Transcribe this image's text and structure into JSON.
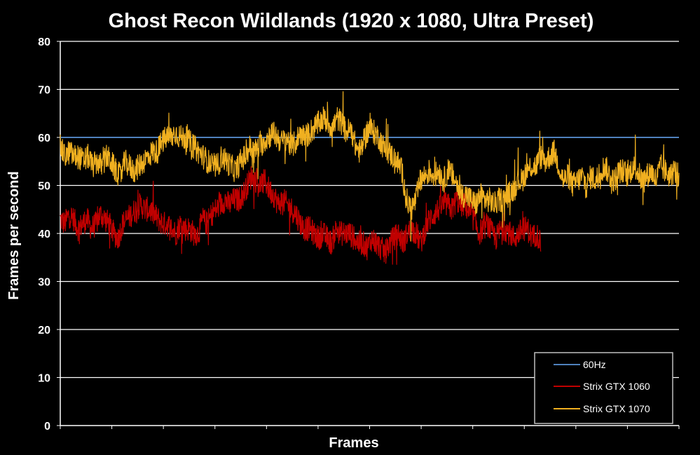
{
  "chart_data": {
    "type": "line",
    "title": "Ghost Recon Wildlands (1920 x 1080, Ultra Preset)",
    "xlabel": "Frames",
    "ylabel": "Frames per second",
    "ylim": [
      0,
      80
    ],
    "yticks": [
      0,
      10,
      20,
      30,
      40,
      50,
      60,
      70,
      80
    ],
    "grid": true,
    "legend_position": "bottom-right",
    "series": [
      {
        "name": "60Hz",
        "color": "#4f81bd",
        "values": [
          60,
          60
        ]
      },
      {
        "name": "Strix GTX 1060",
        "color": "#c00000",
        "values": [
          43,
          42,
          44,
          43,
          41,
          42,
          43,
          41,
          42,
          44,
          43,
          42,
          40,
          39,
          42,
          43,
          44,
          45,
          46,
          45,
          45,
          44,
          43,
          42,
          42,
          41,
          40,
          42,
          41,
          41,
          40,
          40,
          43,
          42,
          44,
          45,
          46,
          47,
          46,
          47,
          47,
          48,
          50,
          52,
          51,
          50,
          51,
          49,
          48,
          46,
          47,
          46,
          45,
          44,
          42,
          41,
          41,
          40,
          39,
          40,
          39,
          38,
          41,
          40,
          40,
          40,
          39,
          38,
          38,
          37,
          39,
          38,
          37,
          36,
          38,
          39,
          40,
          38,
          40,
          41,
          40,
          38,
          41,
          43,
          44,
          45,
          46,
          46,
          45,
          47,
          46,
          46,
          44,
          43,
          40,
          41,
          42,
          40,
          39,
          41,
          41,
          40,
          39,
          40,
          41,
          41,
          39,
          40,
          38
        ]
      },
      {
        "name": "Strix GTX 1070",
        "color": "#f0b020",
        "values": [
          58,
          56,
          57,
          56,
          56,
          55,
          56,
          54,
          55,
          54,
          56,
          55,
          53,
          52,
          55,
          54,
          53,
          54,
          55,
          56,
          57,
          57,
          59,
          60,
          60,
          61,
          60,
          60,
          59,
          58,
          57,
          56,
          55,
          54,
          54,
          56,
          55,
          54,
          53,
          55,
          56,
          58,
          57,
          58,
          59,
          60,
          61,
          60,
          59,
          60,
          58,
          59,
          61,
          60,
          61,
          62,
          63,
          64,
          63,
          62,
          64,
          63,
          61,
          62,
          58,
          57,
          60,
          62,
          61,
          60,
          58,
          57,
          56,
          55,
          53,
          47,
          45,
          47,
          51,
          52,
          53,
          52,
          53,
          51,
          53,
          52,
          50,
          48,
          48,
          47,
          46,
          48,
          47,
          47,
          46,
          47,
          47,
          48,
          49,
          51,
          51,
          53,
          54,
          54,
          56,
          55,
          56,
          57,
          54,
          51,
          52,
          50,
          51,
          52,
          50,
          52,
          51,
          53,
          54,
          52,
          51,
          53,
          53,
          52,
          54,
          53,
          51,
          52,
          53,
          51,
          54,
          53,
          52,
          53,
          52
        ]
      }
    ]
  }
}
